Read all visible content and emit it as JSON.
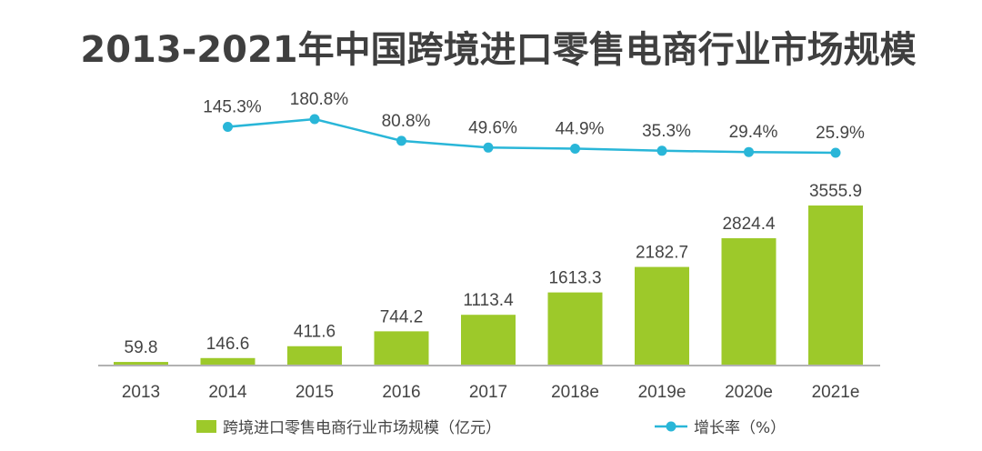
{
  "chart_data": {
    "type": "bar",
    "title": "2013-2021年中国跨境进口零售电商行业市场规模",
    "categories": [
      "2013",
      "2014",
      "2015",
      "2016",
      "2017",
      "2018e",
      "2019e",
      "2020e",
      "2021e"
    ],
    "series": [
      {
        "name": "跨境进口零售电商行业市场规模（亿元）",
        "type": "bar",
        "values": [
          59.8,
          146.6,
          411.6,
          744.2,
          1113.4,
          1613.3,
          2182.7,
          2824.4,
          3555.9
        ],
        "labels": [
          "59.8",
          "146.6",
          "411.6",
          "744.2",
          "1113.4",
          "1613.3",
          "2182.7",
          "2824.4",
          "3555.9"
        ]
      },
      {
        "name": "增长率（%）",
        "type": "line",
        "values": [
          null,
          145.3,
          180.8,
          80.8,
          49.6,
          44.9,
          35.3,
          29.4,
          25.9
        ],
        "labels": [
          "",
          "145.3%",
          "180.8%",
          "80.8%",
          "49.6%",
          "44.9%",
          "35.3%",
          "29.4%",
          "25.9%"
        ]
      }
    ],
    "legend_position": "bottom",
    "colors": {
      "bar": "#9dc92a",
      "line": "#29b6d8",
      "axis": "#999999"
    },
    "ylim_bar": [
      0,
      4000
    ],
    "grid": false
  }
}
